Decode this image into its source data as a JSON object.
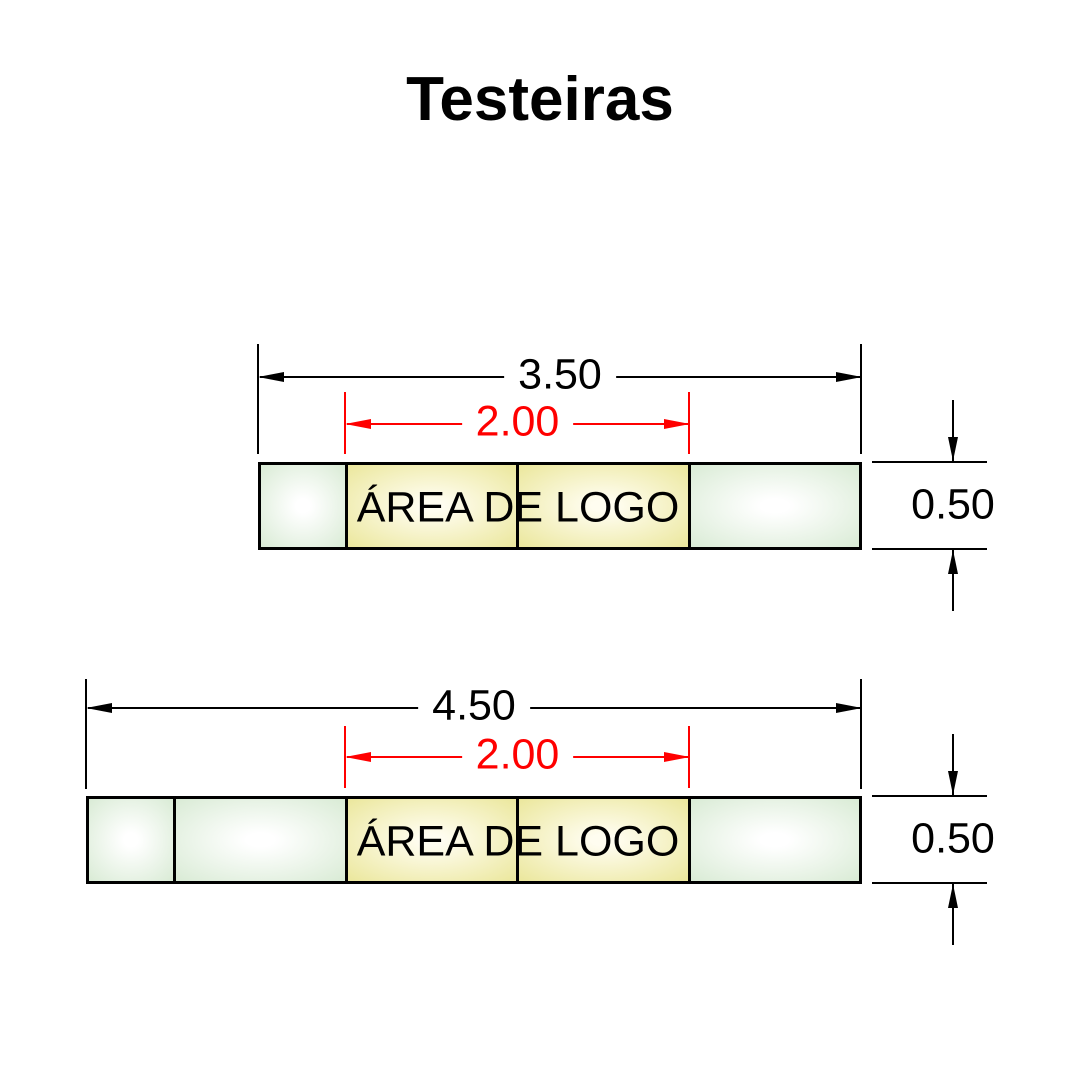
{
  "title": "Testeiras",
  "colors": {
    "dimension_black": "#000000",
    "dimension_red": "#ff0000",
    "panel_edge": "#d9ebd5",
    "panel_center": "#ffffff",
    "logo_edge": "#ebe79c",
    "logo_center": "#fffdf0",
    "background": "#ffffff"
  },
  "diagrams": [
    {
      "id": "testeira-350",
      "total_width_label": "3.50",
      "total_width_m": 3.5,
      "logo_width_label": "2.00",
      "logo_width_m": 2.0,
      "height_label": "0.50",
      "height_m": 0.5,
      "logo_text": "ÁREA DE LOGO",
      "segments": [
        {
          "kind": "panel",
          "width_m": 0.5
        },
        {
          "kind": "logo",
          "width_m": 1.0
        },
        {
          "kind": "logo",
          "width_m": 1.0
        },
        {
          "kind": "panel",
          "width_m": 1.0
        }
      ]
    },
    {
      "id": "testeira-450",
      "total_width_label": "4.50",
      "total_width_m": 4.5,
      "logo_width_label": "2.00",
      "logo_width_m": 2.0,
      "height_label": "0.50",
      "height_m": 0.5,
      "logo_text": "ÁREA DE LOGO",
      "segments": [
        {
          "kind": "panel",
          "width_m": 0.5
        },
        {
          "kind": "panel",
          "width_m": 1.0
        },
        {
          "kind": "logo",
          "width_m": 1.0
        },
        {
          "kind": "logo",
          "width_m": 1.0
        },
        {
          "kind": "panel",
          "width_m": 1.0
        }
      ]
    }
  ]
}
